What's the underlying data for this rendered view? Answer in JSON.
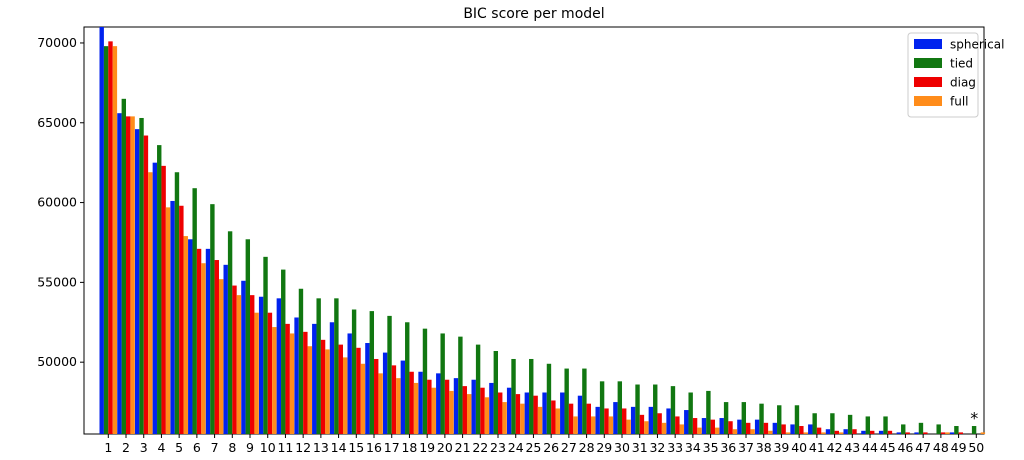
{
  "chart_data": {
    "type": "bar",
    "title": "BIC score per model",
    "xlabel": "",
    "ylabel": "",
    "ylim": [
      45500,
      71000
    ],
    "yticks": [
      50000,
      55000,
      60000,
      65000,
      70000
    ],
    "grid": false,
    "legend_position": "top-right",
    "categories": [
      "1",
      "2",
      "3",
      "4",
      "5",
      "6",
      "7",
      "8",
      "9",
      "10",
      "11",
      "12",
      "13",
      "14",
      "15",
      "16",
      "17",
      "18",
      "19",
      "20",
      "21",
      "22",
      "23",
      "24",
      "25",
      "26",
      "27",
      "28",
      "29",
      "30",
      "31",
      "32",
      "33",
      "34",
      "35",
      "36",
      "37",
      "38",
      "39",
      "40",
      "41",
      "42",
      "43",
      "44",
      "45",
      "46",
      "47",
      "48",
      "49",
      "50"
    ],
    "series": [
      {
        "name": "spherical",
        "color": "#0022ee",
        "values": [
          71000,
          65600,
          64600,
          62500,
          60100,
          57700,
          57100,
          56100,
          55100,
          54100,
          54000,
          52800,
          52400,
          52500,
          51800,
          51200,
          50600,
          50100,
          49400,
          49300,
          49000,
          48900,
          48700,
          48400,
          48100,
          48100,
          48100,
          47900,
          47200,
          47500,
          47200,
          47200,
          47100,
          47000,
          46500,
          46500,
          46400,
          46400,
          46200,
          46100,
          46100,
          45800,
          45800,
          45700,
          45700,
          45600,
          45600,
          45500,
          45600,
          45500
        ]
      },
      {
        "name": "tied",
        "color": "#117711",
        "values": [
          69800,
          66500,
          65300,
          63600,
          61900,
          60900,
          59900,
          58200,
          57700,
          56600,
          55800,
          54600,
          54000,
          54000,
          53300,
          53200,
          52900,
          52500,
          52100,
          51800,
          51600,
          51100,
          50700,
          50200,
          50200,
          49900,
          49600,
          49600,
          48800,
          48800,
          48600,
          48600,
          48500,
          48100,
          48200,
          47500,
          47500,
          47400,
          47300,
          47300,
          46800,
          46800,
          46700,
          46600,
          46600,
          46100,
          46200,
          46100,
          46000,
          46000
        ]
      },
      {
        "name": "diag",
        "color": "#ee0000",
        "values": [
          70100,
          65400,
          64200,
          62300,
          59800,
          57100,
          56400,
          54800,
          54200,
          53100,
          52400,
          51900,
          51400,
          51100,
          50900,
          50200,
          49800,
          49400,
          48900,
          48900,
          48500,
          48400,
          48100,
          48000,
          47900,
          47600,
          47400,
          47400,
          47100,
          47100,
          46700,
          46800,
          46600,
          46500,
          46400,
          46300,
          46200,
          46200,
          46100,
          46000,
          45900,
          45700,
          45800,
          45700,
          45700,
          45600,
          45600,
          45600,
          45600,
          45500
        ]
      },
      {
        "name": "full",
        "color": "#ff8c1a",
        "values": [
          69800,
          65400,
          61900,
          59700,
          57900,
          56200,
          55200,
          54200,
          53100,
          52200,
          51800,
          51000,
          50800,
          50300,
          49900,
          49300,
          49000,
          48700,
          48400,
          48200,
          48000,
          47800,
          47500,
          47400,
          47200,
          47100,
          46600,
          46600,
          46600,
          46400,
          46300,
          46200,
          46100,
          45900,
          45900,
          45800,
          45800,
          45700,
          45600,
          45600,
          45600,
          45600,
          45500,
          45500,
          45500,
          45500,
          45500,
          45600,
          45500,
          45600
        ]
      }
    ],
    "annotations": [
      {
        "text": "*",
        "category": "50",
        "value": 46400
      }
    ]
  }
}
